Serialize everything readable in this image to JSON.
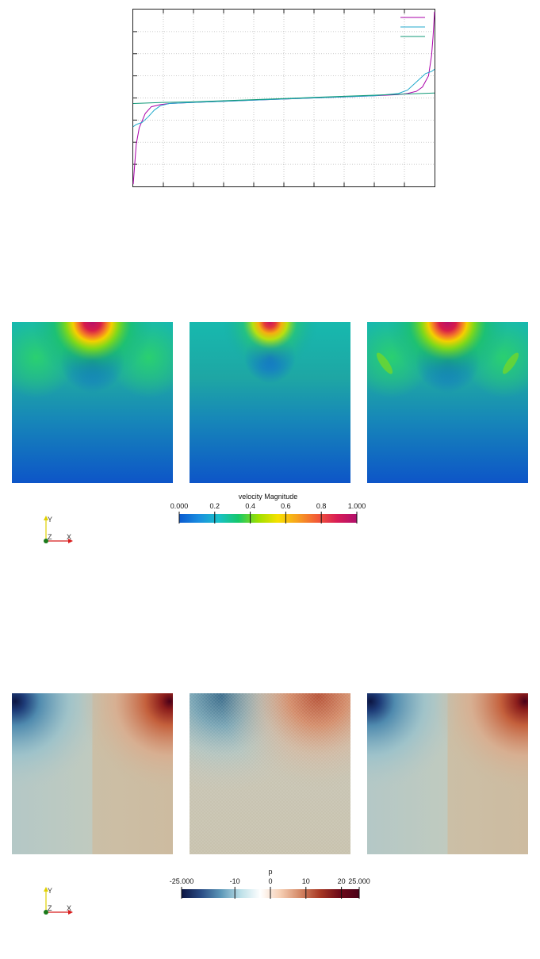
{
  "chart_data": [
    {
      "type": "line",
      "title": "",
      "xlabel": "",
      "ylabel": "",
      "xlim": [
        0,
        1
      ],
      "ylim": [
        -0.8,
        0.8
      ],
      "grid": true,
      "legend": "top-right",
      "series": [
        {
          "color": "#aa00aa",
          "x": [
            0,
            0.005,
            0.01,
            0.02,
            0.04,
            0.06,
            0.09,
            0.12,
            0.2,
            0.4,
            0.6,
            0.8,
            0.88,
            0.91,
            0.94,
            0.96,
            0.98,
            0.99,
            0.995,
            1
          ],
          "y": [
            -0.78,
            -0.6,
            -0.42,
            -0.27,
            -0.14,
            -0.08,
            -0.06,
            -0.05,
            -0.04,
            -0.02,
            0.0,
            0.02,
            0.03,
            0.04,
            0.06,
            0.1,
            0.2,
            0.38,
            0.55,
            0.78
          ]
        },
        {
          "color": "#22aacc",
          "x": [
            0,
            0.01,
            0.03,
            0.05,
            0.07,
            0.09,
            0.12,
            0.2,
            0.4,
            0.6,
            0.8,
            0.88,
            0.91,
            0.93,
            0.95,
            0.97,
            0.99,
            1
          ],
          "y": [
            -0.26,
            -0.24,
            -0.22,
            -0.17,
            -0.11,
            -0.07,
            -0.05,
            -0.04,
            -0.02,
            0.0,
            0.02,
            0.04,
            0.07,
            0.12,
            0.17,
            0.22,
            0.24,
            0.26
          ]
        },
        {
          "color": "#119977",
          "x": [
            0,
            0.1,
            0.2,
            0.3,
            0.4,
            0.5,
            0.6,
            0.7,
            0.8,
            0.9,
            1
          ],
          "y": [
            -0.05,
            -0.04,
            -0.035,
            -0.025,
            -0.015,
            -0.005,
            0.005,
            0.015,
            0.025,
            0.035,
            0.045
          ]
        }
      ]
    },
    {
      "type": "heatmap",
      "colorbar": {
        "title": "velocity Magnitude",
        "ticks": [
          "0.000",
          "0.2",
          "0.4",
          "0.6",
          "0.8",
          "1.000"
        ],
        "tick_values": [
          0,
          0.2,
          0.4,
          0.6,
          0.8,
          1.0
        ],
        "range": [
          0,
          1
        ],
        "colors": [
          "#0a5ad0",
          "#1a8ee0",
          "#19c0c8",
          "#16c86a",
          "#9ee000",
          "#f7e100",
          "#f7a020",
          "#f25a38",
          "#d81c56",
          "#b0106c"
        ]
      },
      "panels": 3
    },
    {
      "type": "heatmap",
      "colorbar": {
        "title": "p",
        "ticks": [
          "-25.000",
          "-10",
          "0",
          "10",
          "20",
          "25.000"
        ],
        "tick_values": [
          -25,
          -10,
          0,
          10,
          20,
          25
        ],
        "range": [
          -25,
          25
        ],
        "colors": [
          "#0c1542",
          "#2a4d86",
          "#5d98b8",
          "#bde0e8",
          "#ffffff",
          "#f6cfb4",
          "#d48866",
          "#a83824",
          "#6e0a18",
          "#4a0018"
        ]
      },
      "panels": 3
    }
  ],
  "axes_triad": {
    "y_label": "Y",
    "z_label": "Z",
    "x_label": "X",
    "y_color": "#e0d000",
    "z_color": "#1b7a1b",
    "x_color": "#d81c1c"
  }
}
